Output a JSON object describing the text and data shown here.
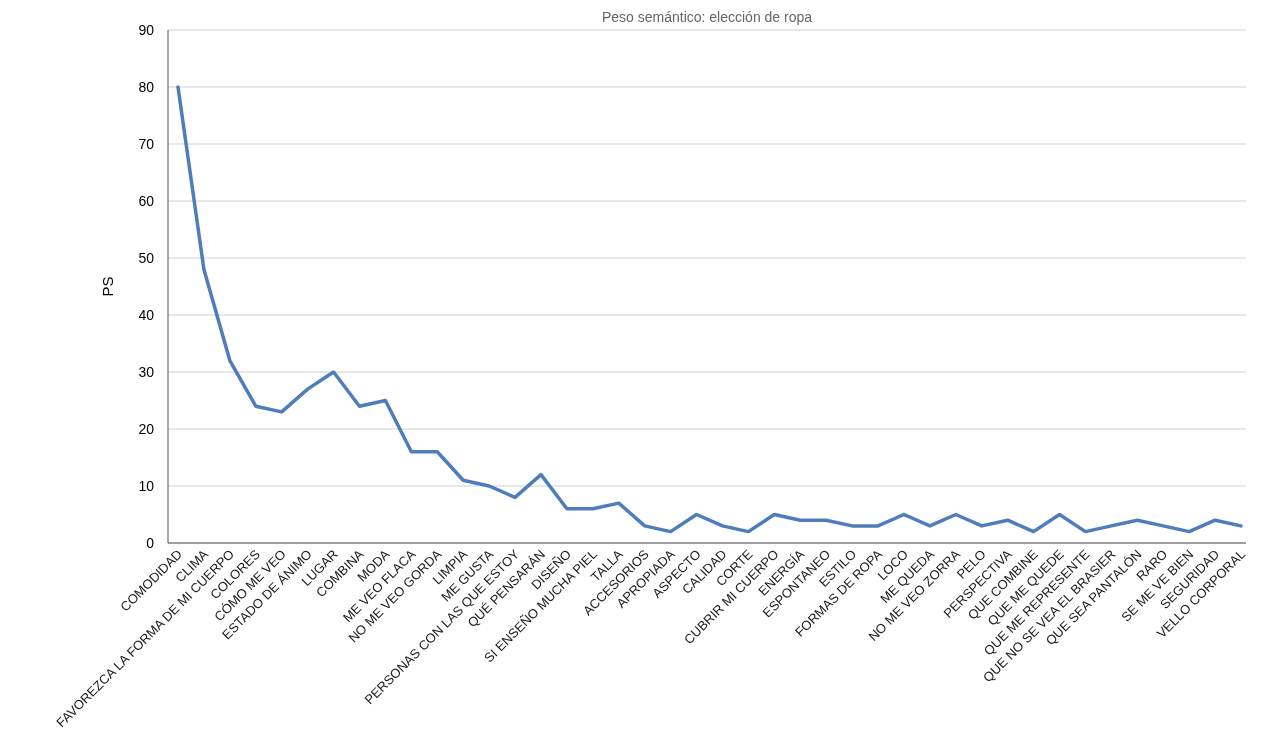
{
  "chart_data": {
    "type": "line",
    "title": "Peso semántico: elección de ropa",
    "ylabel": "PS",
    "categories": [
      "COMODIDAD",
      "CLIMA",
      "FAVOREZCA LA FORMA DE MI CUERPO",
      "COLORES",
      "CÓMO ME VEO",
      "ESTADO DE ÁNIMO",
      "LUGAR",
      "COMBINA",
      "MODA",
      "ME VEO FLACA",
      "NO ME VEO GORDA",
      "LIMPIA",
      "ME GUSTA",
      "PERSONAS CON LAS QUE ESTOY",
      "QUÉ PENSARÁN",
      "DISEÑO",
      "SI ENSEÑO MUCHA PIEL",
      "TALLA",
      "ACCESORIOS",
      "APROPIADA",
      "ASPECTO",
      "CALIDAD",
      "CORTE",
      "CUBRIR MI CUERPO",
      "ENERGÍA",
      "ESPONTANEO",
      "ESTILO",
      "FORMAS DE ROPA",
      "LOCO",
      "ME QUEDA",
      "NO ME VEO ZORRA",
      "PELO",
      "PERSPECTIVA",
      "QUE COMBINE",
      "QUE ME QUEDE",
      "QUE ME REPRESENTE",
      "QUE NO SE VEA EL BRASIER",
      "QUE SEA PANTALÓN",
      "RARO",
      "SE ME VE BIEN",
      "SEGURIDAD",
      "VELLO CORPORAL"
    ],
    "series": [
      {
        "color": "#4f7cba",
        "values": [
          80,
          48,
          32,
          24,
          23,
          27,
          30,
          24,
          25,
          16,
          16,
          11,
          10,
          8,
          12,
          6,
          6,
          7,
          3,
          2,
          5,
          3,
          2,
          5,
          4,
          4,
          3,
          3,
          5,
          3,
          5,
          3,
          4,
          2,
          5,
          2,
          3,
          4,
          3,
          2,
          4,
          3
        ]
      }
    ],
    "ylim": [
      0,
      90
    ],
    "yticks": [
      0,
      10,
      20,
      30,
      40,
      50,
      60,
      70,
      80,
      90
    ],
    "grid": "y",
    "marker": "none",
    "line_style": "solid"
  }
}
